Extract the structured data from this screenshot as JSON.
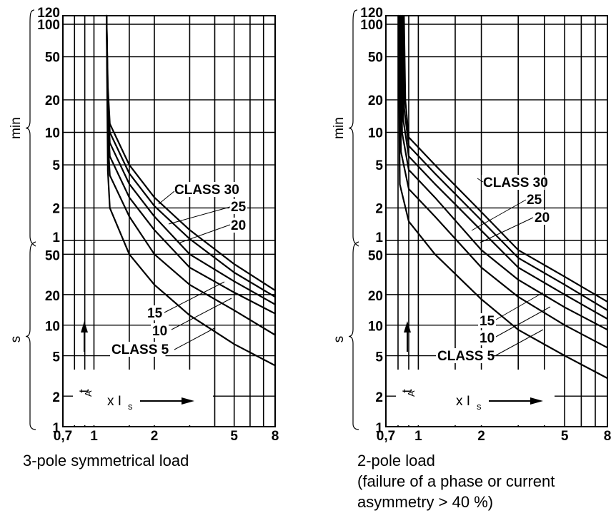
{
  "captions": {
    "left": "3-pole symmetrical load",
    "right_line1": "2-pole load",
    "right_line2": "(failure of a phase or current",
    "right_line3": "asymmetry > 40 %)"
  },
  "colors": {
    "line": "#000000",
    "background": "#ffffff"
  },
  "chart_data": [
    {
      "type": "line",
      "title": "",
      "xscale": "log",
      "yscale": "log",
      "x_ticks": [
        "0,7",
        "1",
        "2",
        "5",
        "8"
      ],
      "y_ticks_min": [
        "120",
        "100",
        "50",
        "20",
        "10",
        "5",
        "2",
        "1"
      ],
      "y_ticks_s": [
        "50",
        "20",
        "10",
        "5",
        "2",
        "1"
      ],
      "y_unit_upper": "min",
      "y_unit_lower": "s",
      "y_axis_label": "t",
      "y_axis_label_sub": "A",
      "x_axis_label": "x I",
      "x_axis_label_sub": "s",
      "xlim": [
        0.7,
        8
      ],
      "ylim_seconds": [
        1,
        7200
      ],
      "labels": [
        "CLASS 30",
        "25",
        "20",
        "15",
        "10",
        "CLASS 5"
      ],
      "series": [
        {
          "name": "CLASS 30",
          "asymptote": 1.15,
          "x": [
            1.2,
            1.5,
            2,
            3,
            5,
            8
          ],
          "y_seconds": [
            720,
            300,
            150,
            75,
            40,
            22
          ]
        },
        {
          "name": "25",
          "asymptote": 1.15,
          "x": [
            1.2,
            1.5,
            2,
            3,
            5,
            8
          ],
          "y_seconds": [
            600,
            250,
            125,
            62,
            33,
            19
          ]
        },
        {
          "name": "20",
          "asymptote": 1.15,
          "x": [
            1.2,
            1.5,
            2,
            3,
            5,
            8
          ],
          "y_seconds": [
            480,
            200,
            100,
            50,
            27,
            16
          ]
        },
        {
          "name": "15",
          "asymptote": 1.15,
          "x": [
            1.2,
            1.5,
            2,
            3,
            5,
            8
          ],
          "y_seconds": [
            360,
            150,
            75,
            37,
            21,
            13
          ]
        },
        {
          "name": "10",
          "asymptote": 1.15,
          "x": [
            1.2,
            1.5,
            2,
            3,
            5,
            8
          ],
          "y_seconds": [
            240,
            100,
            50,
            25,
            14,
            8
          ]
        },
        {
          "name": "CLASS 5",
          "asymptote": 1.15,
          "x": [
            1.2,
            1.5,
            2,
            3,
            5,
            8
          ],
          "y_seconds": [
            120,
            50,
            25,
            12.5,
            6.5,
            4
          ]
        }
      ]
    },
    {
      "type": "line",
      "title": "",
      "xscale": "log",
      "yscale": "log",
      "x_ticks": [
        "0,7",
        "1",
        "2",
        "5",
        "8"
      ],
      "y_ticks_min": [
        "120",
        "100",
        "50",
        "20",
        "10",
        "5",
        "2",
        "1"
      ],
      "y_ticks_s": [
        "50",
        "20",
        "10",
        "5",
        "2",
        "1"
      ],
      "y_unit_upper": "min",
      "y_unit_lower": "s",
      "y_axis_label": "t",
      "y_axis_label_sub": "A",
      "x_axis_label": "x I",
      "x_axis_label_sub": "s",
      "xlim": [
        0.7,
        8
      ],
      "ylim_seconds": [
        1,
        7200
      ],
      "labels": [
        "CLASS 30",
        "25",
        "20",
        "15",
        "10",
        "CLASS 5"
      ],
      "series": [
        {
          "name": "CLASS 30",
          "asymptote": 0.85,
          "x": [
            0.9,
            1.2,
            2,
            3,
            5,
            8
          ],
          "y_seconds": [
            540,
            300,
            110,
            55,
            30,
            17
          ]
        },
        {
          "name": "25",
          "asymptote": 0.84,
          "x": [
            0.9,
            1.2,
            2,
            3,
            5,
            8
          ],
          "y_seconds": [
            450,
            250,
            92,
            46,
            25,
            14
          ]
        },
        {
          "name": "20",
          "asymptote": 0.83,
          "x": [
            0.9,
            1.2,
            2,
            3,
            5,
            8
          ],
          "y_seconds": [
            360,
            200,
            74,
            37,
            20,
            11.5
          ]
        },
        {
          "name": "15",
          "asymptote": 0.82,
          "x": [
            0.9,
            1.2,
            2,
            3,
            5,
            8
          ],
          "y_seconds": [
            270,
            150,
            55,
            28,
            15,
            9
          ]
        },
        {
          "name": "10",
          "asymptote": 0.81,
          "x": [
            0.9,
            1.2,
            2,
            3,
            5,
            8
          ],
          "y_seconds": [
            180,
            100,
            37,
            19,
            10,
            6
          ]
        },
        {
          "name": "CLASS 5",
          "asymptote": 0.8,
          "x": [
            0.9,
            1.2,
            2,
            3,
            5,
            8
          ],
          "y_seconds": [
            90,
            50,
            18,
            9,
            5,
            3
          ]
        }
      ]
    }
  ]
}
